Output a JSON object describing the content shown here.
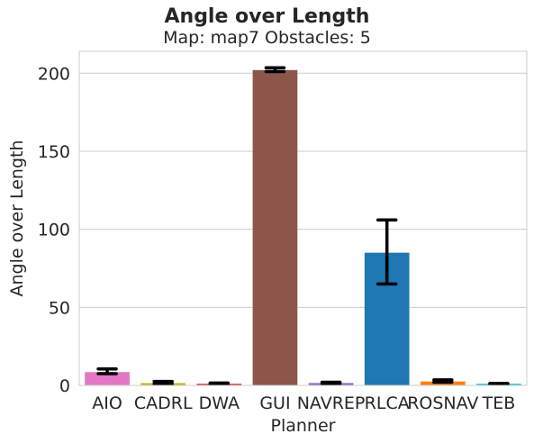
{
  "chart_data": {
    "type": "bar",
    "title": "Angle over Length",
    "subtitle": "Map: map7 Obstacles: 5",
    "xlabel": "Planner",
    "ylabel": "Angle over Length",
    "categories": [
      "AIO",
      "CADRL",
      "DWA",
      "GUI",
      "NAVREP",
      "RLCA",
      "ROSNAV",
      "TEB"
    ],
    "values": [
      8.5,
      1.5,
      1.0,
      202,
      1.5,
      85,
      2.5,
      1.0
    ],
    "error_low": [
      7.5,
      1.0,
      0.8,
      201,
      1.2,
      65,
      2.0,
      0.8
    ],
    "error_high": [
      10.5,
      2.5,
      1.5,
      203.5,
      2.0,
      106,
      3.5,
      1.2
    ],
    "colors": [
      "#e377c2",
      "#bcbd22",
      "#d62728",
      "#8c564b",
      "#9467bd",
      "#1f77b4",
      "#ff7f0e",
      "#17becf"
    ],
    "ylim": [
      0,
      214
    ],
    "yticks": [
      0,
      50,
      100,
      150,
      200
    ],
    "grid": true,
    "legend": "none"
  }
}
